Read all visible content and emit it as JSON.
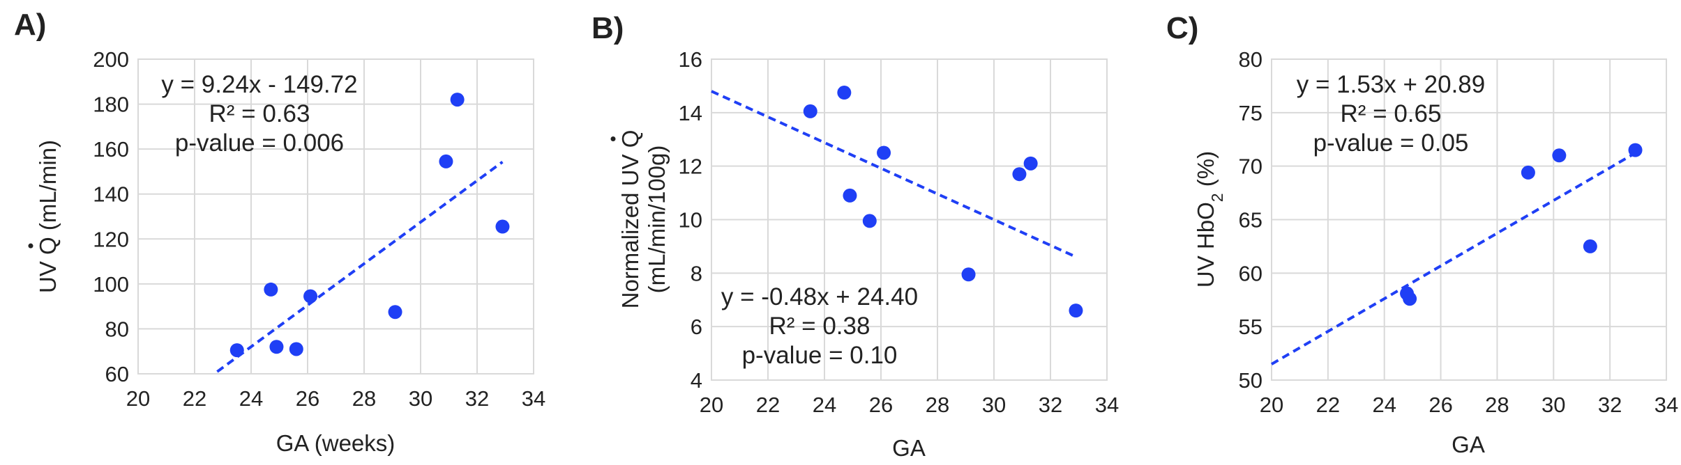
{
  "chart_data": [
    {
      "type": "scatter",
      "panel_label": "A)",
      "xlabel": "GA (weeks)",
      "ylabel": "UV Q (mL/min)",
      "ylabel_dot_symbol": "Q",
      "xlim": [
        20,
        34
      ],
      "ylim": [
        60,
        200
      ],
      "xticks": [
        20,
        22,
        24,
        26,
        28,
        30,
        32,
        34
      ],
      "yticks": [
        60,
        80,
        100,
        120,
        140,
        160,
        180,
        200
      ],
      "grid": true,
      "point_color": "#1f3ff5",
      "trend_color": "#1f3ff5",
      "points": [
        {
          "x": 23.5,
          "y": 70.5
        },
        {
          "x": 24.7,
          "y": 97.5
        },
        {
          "x": 24.9,
          "y": 72
        },
        {
          "x": 25.6,
          "y": 71
        },
        {
          "x": 26.1,
          "y": 94.5
        },
        {
          "x": 29.1,
          "y": 87.5
        },
        {
          "x": 30.9,
          "y": 154.5
        },
        {
          "x": 31.3,
          "y": 182
        },
        {
          "x": 32.9,
          "y": 125.5
        }
      ],
      "trendline": {
        "slope": 9.24,
        "intercept": -149.72,
        "x_range": [
          22.8,
          32.9
        ]
      },
      "annotations": [
        "y = 9.24x - 149.72",
        "R² = 0.63",
        "p-value = 0.006"
      ],
      "annotation_position": "top-left"
    },
    {
      "type": "scatter",
      "panel_label": "B)",
      "xlabel": "GA",
      "ylabel": "Normalized UV Q",
      "ylabel_line2": "(mL/min/100g)",
      "ylabel_dot_symbol": "Q",
      "xlim": [
        20,
        34
      ],
      "ylim": [
        4,
        16
      ],
      "xticks": [
        20,
        22,
        24,
        26,
        28,
        30,
        32,
        34
      ],
      "yticks": [
        4,
        6,
        8,
        10,
        12,
        14,
        16
      ],
      "grid": true,
      "point_color": "#1f3ff5",
      "trend_color": "#1f3ff5",
      "points": [
        {
          "x": 23.5,
          "y": 14.05
        },
        {
          "x": 24.7,
          "y": 14.75
        },
        {
          "x": 24.9,
          "y": 10.9
        },
        {
          "x": 25.6,
          "y": 9.95
        },
        {
          "x": 26.1,
          "y": 12.5
        },
        {
          "x": 29.1,
          "y": 7.95
        },
        {
          "x": 30.9,
          "y": 11.7
        },
        {
          "x": 31.3,
          "y": 12.1
        },
        {
          "x": 32.9,
          "y": 6.6
        }
      ],
      "trendline": {
        "slope": -0.48,
        "intercept": 24.4,
        "x_range": [
          20,
          32.9
        ]
      },
      "annotations": [
        "y = -0.48x + 24.40",
        "R² = 0.38",
        "p-value = 0.10"
      ],
      "annotation_position": "bottom-center"
    },
    {
      "type": "scatter",
      "panel_label": "C)",
      "xlabel": "GA",
      "ylabel": "UV HbO",
      "ylabel_sub": "2",
      "ylabel_tail": " (%)",
      "xlim": [
        20,
        34
      ],
      "ylim": [
        50,
        80
      ],
      "xticks": [
        20,
        22,
        24,
        26,
        28,
        30,
        32,
        34
      ],
      "yticks": [
        50,
        55,
        60,
        65,
        70,
        75,
        80
      ],
      "grid": true,
      "point_color": "#1f3ff5",
      "trend_color": "#1f3ff5",
      "points": [
        {
          "x": 24.8,
          "y": 58.1
        },
        {
          "x": 24.9,
          "y": 57.6
        },
        {
          "x": 29.1,
          "y": 69.4
        },
        {
          "x": 30.2,
          "y": 71
        },
        {
          "x": 31.3,
          "y": 62.5
        },
        {
          "x": 32.9,
          "y": 71.5
        }
      ],
      "trendline": {
        "slope": 1.53,
        "intercept": 20.89,
        "x_range": [
          20,
          32.9
        ]
      },
      "annotations": [
        "y = 1.53x + 20.89",
        "R² = 0.65",
        "p-value = 0.05"
      ],
      "annotation_position": "top-left"
    }
  ]
}
